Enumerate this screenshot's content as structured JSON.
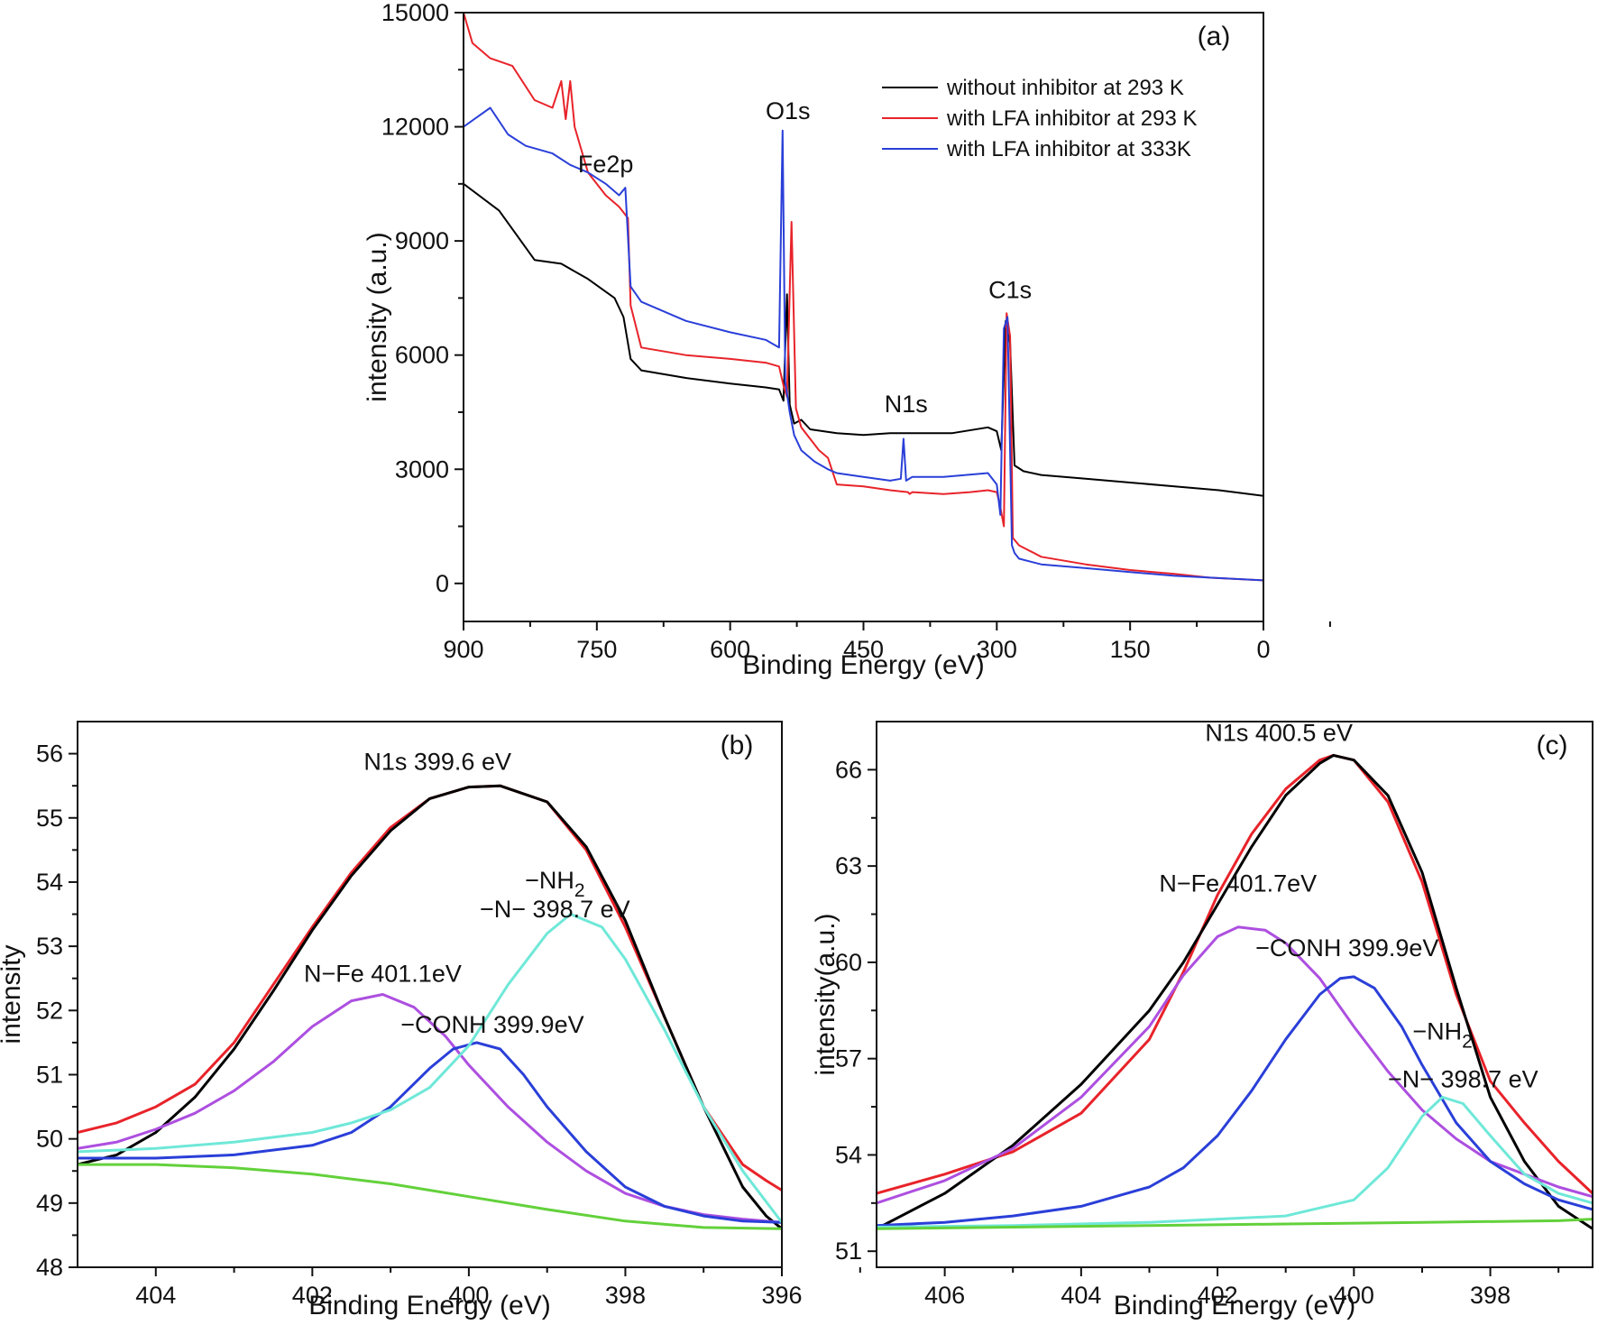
{
  "chart_data": [
    {
      "id": "a",
      "type": "line",
      "panel_label": "(a)",
      "xlabel": "Binding Energy (eV)",
      "ylabel": "intensity (a.u.)",
      "xlim": [
        900,
        0
      ],
      "ylim": [
        -1000,
        15000
      ],
      "xticks": [
        900,
        750,
        600,
        450,
        300,
        150,
        0
      ],
      "yticks": [
        0,
        3000,
        6000,
        9000,
        12000,
        15000
      ],
      "legend_position": "top-right",
      "annotations": [
        {
          "text": "Fe2p",
          "x": 740,
          "y": 10800
        },
        {
          "text": "O1s",
          "x": 535,
          "y": 12200
        },
        {
          "text": "N1s",
          "x": 402,
          "y": 4500
        },
        {
          "text": "C1s",
          "x": 285,
          "y": 7500
        }
      ],
      "series": [
        {
          "name": "without inhibitor at 293 K",
          "color": "#000000",
          "x": [
            900,
            860,
            820,
            790,
            760,
            730,
            720,
            712,
            700,
            650,
            600,
            560,
            545,
            540,
            536,
            533,
            528,
            520,
            510,
            480,
            450,
            420,
            400,
            350,
            310,
            300,
            295,
            290,
            285,
            280,
            270,
            250,
            200,
            150,
            100,
            50,
            0
          ],
          "y": [
            10500,
            9800,
            8500,
            8400,
            8000,
            7500,
            7000,
            5900,
            5600,
            5400,
            5250,
            5150,
            5100,
            4800,
            7600,
            4700,
            4200,
            4300,
            4050,
            3950,
            3900,
            3950,
            3950,
            3950,
            4100,
            4000,
            3500,
            6900,
            6300,
            3100,
            2950,
            2850,
            2750,
            2650,
            2550,
            2450,
            2300
          ]
        },
        {
          "name": "with LFA inhibitor at 293 K",
          "color": "#e8232a",
          "x": [
            900,
            890,
            870,
            845,
            820,
            800,
            790,
            785,
            780,
            775,
            770,
            760,
            740,
            725,
            715,
            712,
            700,
            650,
            600,
            560,
            545,
            540,
            536,
            531,
            526,
            520,
            500,
            490,
            480,
            450,
            420,
            400,
            398,
            395,
            360,
            330,
            310,
            300,
            296,
            292,
            289,
            285,
            282,
            275,
            250,
            200,
            150,
            100,
            60,
            0
          ],
          "y": [
            15000,
            14200,
            13800,
            13600,
            12700,
            12500,
            13200,
            12200,
            13200,
            12000,
            11600,
            10800,
            10200,
            9900,
            9600,
            7300,
            6200,
            6000,
            5900,
            5800,
            5700,
            5200,
            4900,
            9500,
            4600,
            4100,
            3500,
            3300,
            2600,
            2550,
            2450,
            2400,
            2350,
            2400,
            2350,
            2400,
            2450,
            2400,
            2000,
            1500,
            7100,
            6500,
            1200,
            1000,
            700,
            500,
            350,
            250,
            150,
            80
          ]
        },
        {
          "name": "with LFA inhibitor at 333K",
          "color": "#2a3fd8",
          "x": [
            900,
            870,
            850,
            830,
            800,
            780,
            760,
            740,
            725,
            718,
            712,
            700,
            650,
            600,
            560,
            545,
            541,
            538,
            533,
            528,
            520,
            505,
            490,
            480,
            450,
            420,
            408,
            405,
            402,
            395,
            360,
            310,
            300,
            296,
            292,
            288,
            283,
            280,
            275,
            250,
            200,
            150,
            100,
            0
          ],
          "y": [
            12000,
            12500,
            11800,
            11500,
            11300,
            11000,
            10800,
            10500,
            10200,
            10400,
            7800,
            7400,
            6900,
            6600,
            6400,
            6200,
            11900,
            5300,
            4500,
            3900,
            3500,
            3200,
            3000,
            2900,
            2800,
            2700,
            2750,
            3800,
            2700,
            2800,
            2800,
            2900,
            2600,
            1800,
            6700,
            7000,
            1000,
            800,
            650,
            500,
            400,
            300,
            200,
            80
          ]
        }
      ]
    },
    {
      "id": "b",
      "type": "line",
      "panel_label": "(b)",
      "xlabel": "Binding Energy (eV)",
      "ylabel": "intensity",
      "xlim": [
        405,
        396
      ],
      "ylim": [
        48,
        56.5
      ],
      "xticks": [
        404,
        402,
        400,
        398,
        396
      ],
      "yticks": [
        48,
        49,
        50,
        51,
        52,
        53,
        54,
        55,
        56
      ],
      "annotations": [
        {
          "text": "N1s 399.6 eV",
          "x": 400.4,
          "y": 55.75
        },
        {
          "text": "N−Fe 401.1eV",
          "x": 401.1,
          "y": 52.45
        },
        {
          "text": "−CONH 399.9eV",
          "x": 399.7,
          "y": 51.65
        },
        {
          "text": "−NH",
          "sub": "2",
          "x": 398.9,
          "y": 53.9
        },
        {
          "text": "−N−  398.7 eV",
          "x": 398.9,
          "y": 53.45
        }
      ],
      "series": [
        {
          "name": "",
          "color": "#e8232a",
          "x": [
            405,
            404.5,
            404,
            403.5,
            403,
            402.5,
            402,
            401.5,
            401,
            400.5,
            400,
            399.6,
            399,
            398.5,
            398,
            397.5,
            397,
            396.5,
            396.2,
            396
          ],
          "y": [
            50.1,
            50.25,
            50.5,
            50.85,
            51.5,
            52.4,
            53.3,
            54.15,
            54.85,
            55.3,
            55.48,
            55.5,
            55.25,
            54.5,
            53.3,
            51.9,
            50.5,
            49.6,
            49.35,
            49.2
          ]
        },
        {
          "name": "",
          "color": "#000000",
          "x": [
            405,
            404.5,
            404,
            403.5,
            403,
            402.5,
            402,
            401.5,
            401,
            400.5,
            400,
            399.6,
            399,
            398.5,
            398,
            397.5,
            397,
            396.5,
            396.2,
            396
          ],
          "y": [
            49.6,
            49.75,
            50.1,
            50.65,
            51.4,
            52.3,
            53.25,
            54.1,
            54.8,
            55.3,
            55.48,
            55.5,
            55.25,
            54.55,
            53.4,
            51.9,
            50.5,
            49.25,
            48.8,
            48.6
          ]
        },
        {
          "name": "",
          "color": "#ad4fe0",
          "x": [
            405,
            404.5,
            404,
            403.5,
            403,
            402.5,
            402,
            401.5,
            401.1,
            400.7,
            400.3,
            400,
            399.5,
            399,
            398.5,
            398,
            397.5,
            397,
            396.5,
            396
          ],
          "y": [
            49.85,
            49.95,
            50.15,
            50.4,
            50.75,
            51.2,
            51.75,
            52.15,
            52.25,
            52.05,
            51.6,
            51.15,
            50.5,
            49.95,
            49.5,
            49.15,
            48.95,
            48.82,
            48.75,
            48.7
          ]
        },
        {
          "name": "",
          "color": "#2a3fd8",
          "x": [
            405,
            404,
            403,
            402,
            401.5,
            401,
            400.5,
            400.2,
            399.9,
            399.6,
            399.3,
            399,
            398.5,
            398,
            397.5,
            397,
            396.5,
            396
          ],
          "y": [
            49.7,
            49.7,
            49.75,
            49.9,
            50.1,
            50.5,
            51.1,
            51.4,
            51.5,
            51.4,
            51.0,
            50.5,
            49.8,
            49.25,
            48.95,
            48.8,
            48.72,
            48.7
          ]
        },
        {
          "name": "",
          "color": "#6fe8d8",
          "x": [
            405,
            404,
            403,
            402,
            401.5,
            401,
            400.5,
            400,
            399.5,
            399,
            398.7,
            398.3,
            398,
            397.5,
            397,
            396.5,
            396
          ],
          "y": [
            49.8,
            49.85,
            49.95,
            50.1,
            50.25,
            50.45,
            50.8,
            51.45,
            52.4,
            53.2,
            53.5,
            53.3,
            52.8,
            51.7,
            50.5,
            49.5,
            48.7
          ]
        },
        {
          "name": "",
          "color": "#63d13b",
          "x": [
            405,
            404,
            403,
            402,
            401,
            400,
            399,
            398,
            397,
            396
          ],
          "y": [
            49.6,
            49.6,
            49.55,
            49.45,
            49.3,
            49.1,
            48.9,
            48.72,
            48.62,
            48.6
          ]
        }
      ]
    },
    {
      "id": "c",
      "type": "line",
      "panel_label": "(c)",
      "xlabel": "Binding Energy (eV)",
      "ylabel": "intensity(a.u.)",
      "xlim": [
        407,
        396.5
      ],
      "ylim": [
        50.5,
        67.5
      ],
      "xticks": [
        406,
        404,
        402,
        400,
        398
      ],
      "yticks": [
        51,
        54,
        57,
        60,
        63,
        66
      ],
      "annotations": [
        {
          "text": "N1s 400.5 eV",
          "x": 401.1,
          "y": 66.9
        },
        {
          "text": "N−Fe 401.7eV",
          "x": 401.7,
          "y": 62.2
        },
        {
          "text": "−CONH 399.9eV",
          "x": 400.1,
          "y": 60.2
        },
        {
          "text": "−NH",
          "sub": "2",
          "x": 398.7,
          "y": 57.6
        },
        {
          "text": "−N−  398.7 eV",
          "x": 398.4,
          "y": 56.1
        }
      ],
      "series": [
        {
          "name": "",
          "color": "#e8232a",
          "x": [
            407,
            406,
            405,
            404,
            403,
            402.5,
            402,
            401.5,
            401,
            400.5,
            400.3,
            400,
            399.5,
            399,
            398.5,
            398,
            397.5,
            397,
            396.5
          ],
          "y": [
            52.8,
            53.4,
            54.1,
            55.3,
            57.6,
            59.7,
            62.1,
            64.0,
            65.4,
            66.3,
            66.45,
            66.3,
            65.0,
            62.5,
            59.0,
            56.3,
            55.0,
            53.8,
            52.8
          ]
        },
        {
          "name": "",
          "color": "#000000",
          "x": [
            407,
            406,
            405,
            404,
            403,
            402.5,
            402,
            401.5,
            401,
            400.5,
            400.3,
            400,
            399.5,
            399,
            398.5,
            398,
            397.5,
            397,
            396.5
          ],
          "y": [
            51.7,
            52.8,
            54.3,
            56.2,
            58.5,
            60.0,
            61.8,
            63.6,
            65.2,
            66.2,
            66.45,
            66.3,
            65.2,
            62.8,
            59.2,
            55.8,
            53.8,
            52.4,
            51.7
          ]
        },
        {
          "name": "",
          "color": "#ad4fe0",
          "x": [
            407,
            406,
            405,
            404,
            403,
            402.5,
            402,
            401.7,
            401.3,
            401,
            400.5,
            400,
            399.5,
            399,
            398.5,
            398,
            397.5,
            397,
            396.5
          ],
          "y": [
            52.5,
            53.2,
            54.2,
            55.8,
            58.0,
            59.6,
            60.8,
            61.1,
            61.0,
            60.6,
            59.5,
            58.0,
            56.6,
            55.4,
            54.5,
            53.8,
            53.4,
            53.0,
            52.7
          ]
        },
        {
          "name": "",
          "color": "#2a3fd8",
          "x": [
            407,
            406,
            405,
            404,
            403,
            402.5,
            402,
            401.5,
            401,
            400.5,
            400.2,
            400,
            399.7,
            399.3,
            399,
            398.5,
            398,
            397.5,
            397,
            396.5
          ],
          "y": [
            51.8,
            51.9,
            52.1,
            52.4,
            53.0,
            53.6,
            54.6,
            56.0,
            57.6,
            59.0,
            59.5,
            59.55,
            59.2,
            58.0,
            56.8,
            55.0,
            53.8,
            53.1,
            52.6,
            52.3
          ]
        },
        {
          "name": "",
          "color": "#6fe8d8",
          "x": [
            407,
            405,
            403,
            401,
            400,
            399.5,
            399,
            398.7,
            398.4,
            398,
            397.5,
            397,
            396.5
          ],
          "y": [
            51.75,
            51.8,
            51.9,
            52.1,
            52.6,
            53.6,
            55.2,
            55.8,
            55.6,
            54.6,
            53.4,
            52.8,
            52.5
          ]
        },
        {
          "name": "",
          "color": "#63d13b",
          "x": [
            407,
            405,
            403,
            401,
            399,
            397,
            396.5
          ],
          "y": [
            51.7,
            51.75,
            51.8,
            51.85,
            51.9,
            51.95,
            52.0
          ]
        }
      ]
    }
  ]
}
